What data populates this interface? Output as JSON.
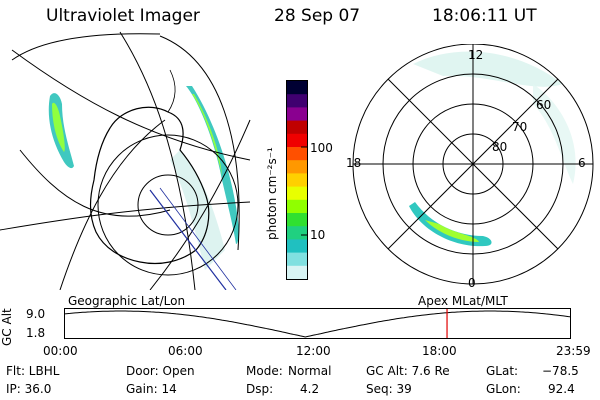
{
  "header": {
    "instrument": "Ultraviolet Imager",
    "date": "28 Sep 07",
    "time": "18:06:11 UT"
  },
  "colorbar": {
    "unit_label": "photon cm⁻²s⁻¹",
    "ticks": [
      "100",
      "10"
    ],
    "colors": [
      "#000033",
      "#400070",
      "#8a0090",
      "#c00000",
      "#f00000",
      "#ff5000",
      "#ff9800",
      "#ffd000",
      "#e8ff00",
      "#90ff00",
      "#30e030",
      "#20d080",
      "#20c0c0",
      "#80e0e0",
      "#d8f4f4"
    ]
  },
  "right_map": {
    "mlt_labels": {
      "top": "12",
      "left": "18",
      "right": "6",
      "bottom": "0"
    },
    "lat_labels": [
      "60",
      "70",
      "80"
    ]
  },
  "labels": {
    "left_map": "Geographic Lat/Lon",
    "right_map": "Apex MLat/MLT"
  },
  "altitude_plot": {
    "ylabel": "GC Alt",
    "y_ticks": [
      "9.0",
      "1.8"
    ],
    "x_ticks": [
      "00:00",
      "06:00",
      "12:00",
      "18:00",
      "23:59"
    ],
    "current_time_fraction": 0.755,
    "marker_color": "#e00000"
  },
  "status": {
    "row1": {
      "flt": "Flt: LBHL",
      "door": "Door: Open",
      "mode_label": "Mode:",
      "mode_value": "Normal",
      "gc_alt": "GC Alt: 7.6 Re",
      "glat_label": "GLat:",
      "glat_value": "−78.5"
    },
    "row2": {
      "ip": "IP: 36.0",
      "gain": "Gain: 14",
      "dsp_label": "Dsp:",
      "dsp_value": "4.2",
      "seq": "Seq: 39",
      "glon_label": "GLon:",
      "glon_value": "92.4"
    }
  }
}
